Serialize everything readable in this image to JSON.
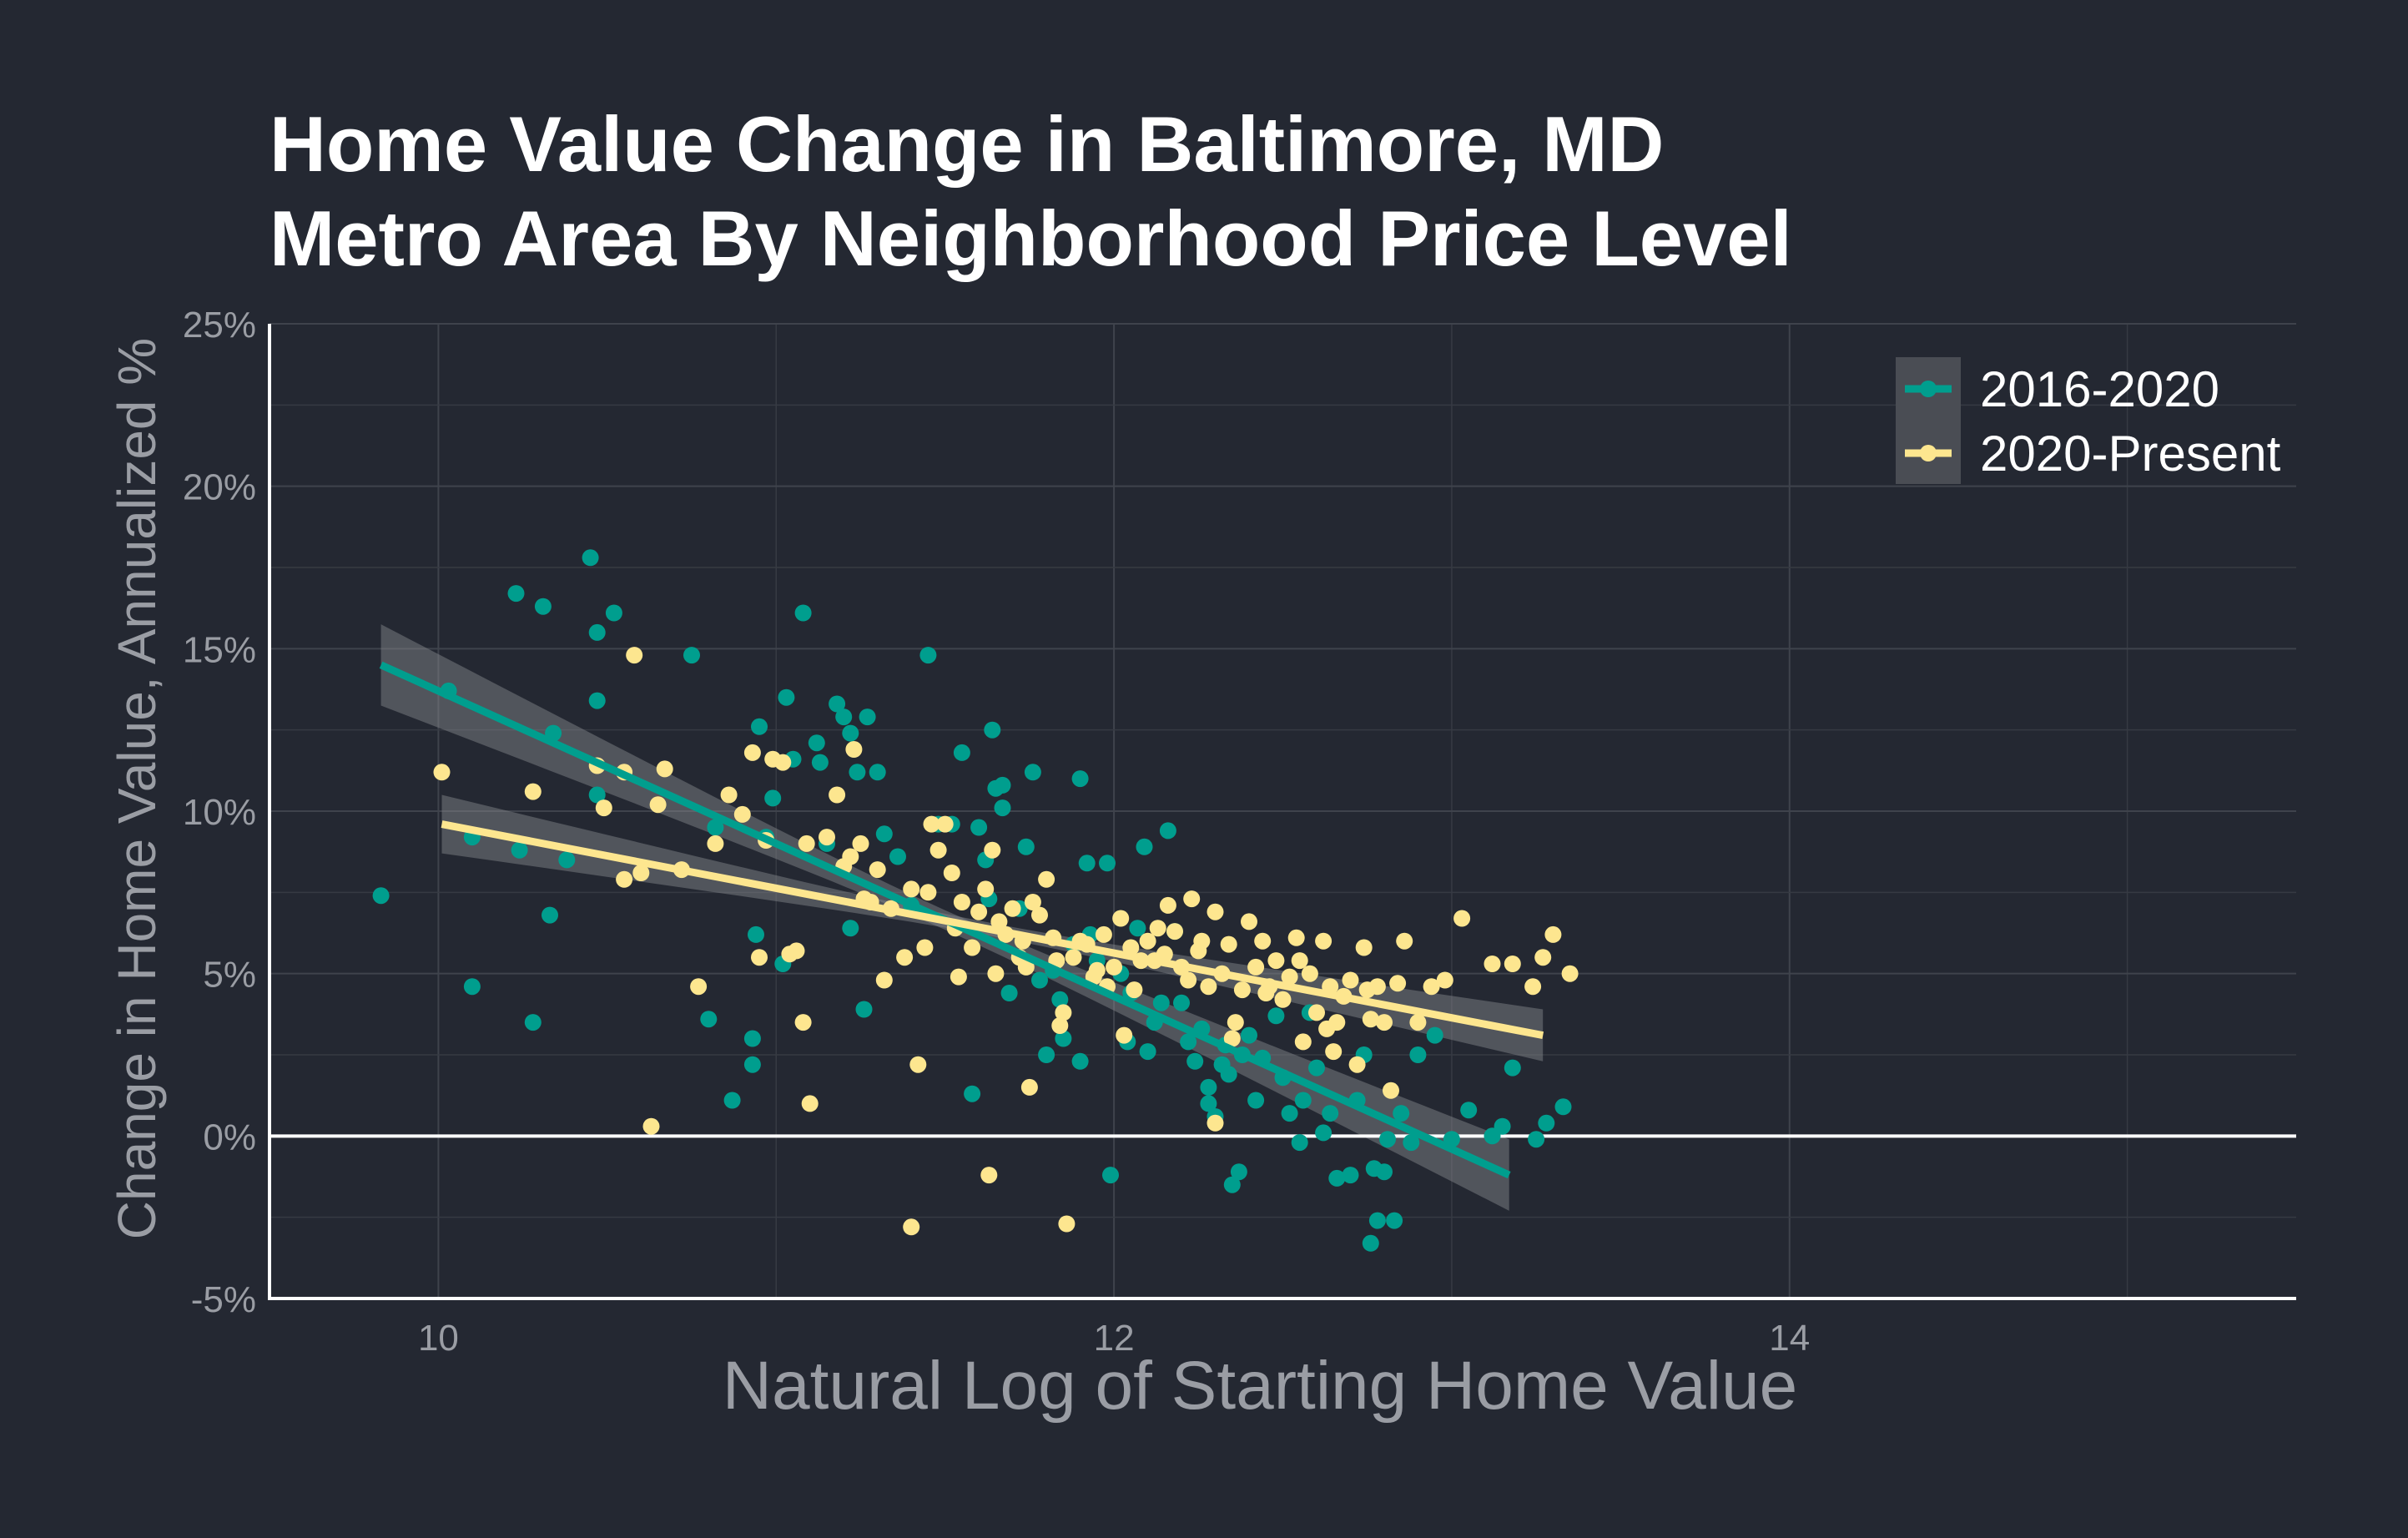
{
  "chart_data": {
    "type": "scatter",
    "title": [
      "Home Value Change in Baltimore, MD",
      "Metro Area By Neighborhood Price Level"
    ],
    "xlabel": "Natural Log of Starting Home Value",
    "ylabel": "Change in Home Value, Annualized %",
    "xlim": [
      9.5,
      15.5
    ],
    "ylim": [
      -5,
      25
    ],
    "x_ticks": [
      10,
      12,
      14
    ],
    "x_tick_labels": [
      "10",
      "12",
      "14"
    ],
    "y_ticks": [
      -5,
      0,
      5,
      10,
      15,
      20,
      25
    ],
    "y_tick_labels": [
      "-5%",
      "0%",
      "5%",
      "10%",
      "15%",
      "20%",
      "25%"
    ],
    "grid": true,
    "zero_line": true,
    "legend_position": "top-right",
    "series": [
      {
        "name": "2016-2020",
        "color": "#009e8e",
        "trend": {
          "x": [
            9.83,
            13.17
          ],
          "y": [
            14.5,
            -1.2
          ],
          "band_halfwidth_ends": [
            1.25,
            1.1
          ],
          "band_halfwidth_center": 0.3
        },
        "points": [
          [
            9.83,
            7.4
          ],
          [
            10.03,
            13.7
          ],
          [
            10.1,
            4.6
          ],
          [
            10.1,
            9.2
          ],
          [
            10.23,
            16.7
          ],
          [
            10.24,
            8.8
          ],
          [
            10.28,
            3.5
          ],
          [
            10.31,
            16.3
          ],
          [
            10.33,
            6.8
          ],
          [
            10.34,
            12.4
          ],
          [
            10.38,
            8.5
          ],
          [
            10.45,
            17.8
          ],
          [
            10.47,
            15.5
          ],
          [
            10.47,
            13.4
          ],
          [
            10.47,
            10.5
          ],
          [
            10.52,
            16.1
          ],
          [
            10.75,
            14.8
          ],
          [
            10.8,
            3.6
          ],
          [
            10.82,
            9.5
          ],
          [
            10.87,
            1.1
          ],
          [
            10.93,
            3.0
          ],
          [
            10.93,
            2.2
          ],
          [
            10.94,
            6.2
          ],
          [
            10.95,
            12.6
          ],
          [
            10.97,
            9.2
          ],
          [
            10.99,
            10.4
          ],
          [
            11.02,
            5.3
          ],
          [
            11.03,
            13.5
          ],
          [
            11.05,
            11.6
          ],
          [
            11.08,
            16.1
          ],
          [
            11.12,
            12.1
          ],
          [
            11.13,
            11.5
          ],
          [
            11.15,
            9.0
          ],
          [
            11.18,
            13.3
          ],
          [
            11.2,
            12.9
          ],
          [
            11.22,
            12.4
          ],
          [
            11.22,
            6.4
          ],
          [
            11.24,
            11.2
          ],
          [
            11.26,
            3.9
          ],
          [
            11.27,
            12.9
          ],
          [
            11.3,
            11.2
          ],
          [
            11.32,
            9.3
          ],
          [
            11.36,
            8.6
          ],
          [
            11.4,
            7.1
          ],
          [
            11.45,
            14.8
          ],
          [
            11.48,
            9.6
          ],
          [
            11.52,
            9.6
          ],
          [
            11.55,
            11.8
          ],
          [
            11.58,
            1.3
          ],
          [
            11.6,
            9.5
          ],
          [
            11.62,
            8.5
          ],
          [
            11.63,
            7.3
          ],
          [
            11.64,
            12.5
          ],
          [
            11.65,
            10.7
          ],
          [
            11.67,
            10.8
          ],
          [
            11.67,
            10.1
          ],
          [
            11.69,
            4.4
          ],
          [
            11.72,
            7.0
          ],
          [
            11.74,
            8.9
          ],
          [
            11.76,
            11.2
          ],
          [
            11.78,
            4.8
          ],
          [
            11.8,
            2.5
          ],
          [
            11.82,
            5.1
          ],
          [
            11.84,
            4.2
          ],
          [
            11.85,
            3.0
          ],
          [
            11.88,
            5.9
          ],
          [
            11.9,
            2.3
          ],
          [
            11.9,
            11.0
          ],
          [
            11.92,
            8.4
          ],
          [
            11.93,
            6.2
          ],
          [
            11.95,
            5.4
          ],
          [
            11.98,
            8.4
          ],
          [
            11.99,
            -1.2
          ],
          [
            12.02,
            5.0
          ],
          [
            12.04,
            2.9
          ],
          [
            12.05,
            4.4
          ],
          [
            12.07,
            6.4
          ],
          [
            12.09,
            8.9
          ],
          [
            12.1,
            2.6
          ],
          [
            12.12,
            3.5
          ],
          [
            12.14,
            4.1
          ],
          [
            12.16,
            9.4
          ],
          [
            12.18,
            6.3
          ],
          [
            12.2,
            4.1
          ],
          [
            12.22,
            2.9
          ],
          [
            12.24,
            2.3
          ],
          [
            12.26,
            3.3
          ],
          [
            12.28,
            1.5
          ],
          [
            12.28,
            1.0
          ],
          [
            12.3,
            0.6
          ],
          [
            12.32,
            2.2
          ],
          [
            12.33,
            2.8
          ],
          [
            12.34,
            1.9
          ],
          [
            12.35,
            -1.5
          ],
          [
            12.37,
            -1.1
          ],
          [
            12.38,
            2.5
          ],
          [
            12.4,
            3.1
          ],
          [
            12.42,
            1.1
          ],
          [
            12.44,
            2.4
          ],
          [
            12.48,
            3.7
          ],
          [
            12.5,
            1.8
          ],
          [
            12.52,
            0.7
          ],
          [
            12.55,
            -0.2
          ],
          [
            12.56,
            1.1
          ],
          [
            12.58,
            3.8
          ],
          [
            12.6,
            2.1
          ],
          [
            12.62,
            0.1
          ],
          [
            12.64,
            0.7
          ],
          [
            12.66,
            -1.3
          ],
          [
            12.7,
            -1.2
          ],
          [
            12.72,
            1.1
          ],
          [
            12.74,
            2.5
          ],
          [
            12.76,
            -3.3
          ],
          [
            12.77,
            -1.0
          ],
          [
            12.78,
            -2.6
          ],
          [
            12.8,
            -1.1
          ],
          [
            12.81,
            -0.1
          ],
          [
            12.83,
            -2.6
          ],
          [
            12.85,
            0.7
          ],
          [
            12.88,
            -0.2
          ],
          [
            12.9,
            2.5
          ],
          [
            12.95,
            3.1
          ],
          [
            13.0,
            -0.1
          ],
          [
            13.05,
            0.8
          ],
          [
            13.12,
            0.0
          ],
          [
            13.15,
            0.3
          ],
          [
            13.18,
            2.1
          ],
          [
            13.25,
            -0.1
          ],
          [
            13.28,
            0.4
          ],
          [
            13.33,
            0.9
          ]
        ]
      },
      {
        "name": "2020-Present",
        "color": "#fde68f",
        "trend": {
          "x": [
            10.01,
            13.27
          ],
          "y": [
            9.6,
            3.1
          ],
          "band_halfwidth_ends": [
            0.9,
            0.8
          ],
          "band_halfwidth_center": 0.2
        },
        "points": [
          [
            10.01,
            11.2
          ],
          [
            10.28,
            10.6
          ],
          [
            10.55,
            11.2
          ],
          [
            10.47,
            11.4
          ],
          [
            10.49,
            10.1
          ],
          [
            10.55,
            7.9
          ],
          [
            10.58,
            14.8
          ],
          [
            10.6,
            8.1
          ],
          [
            10.63,
            0.3
          ],
          [
            10.65,
            10.2
          ],
          [
            10.67,
            11.3
          ],
          [
            10.72,
            8.2
          ],
          [
            10.77,
            4.6
          ],
          [
            10.82,
            9.0
          ],
          [
            10.86,
            10.5
          ],
          [
            10.9,
            9.9
          ],
          [
            10.93,
            11.8
          ],
          [
            10.95,
            5.5
          ],
          [
            10.97,
            9.1
          ],
          [
            10.99,
            11.6
          ],
          [
            11.02,
            11.5
          ],
          [
            11.04,
            5.6
          ],
          [
            11.06,
            5.7
          ],
          [
            11.08,
            3.5
          ],
          [
            11.09,
            9.0
          ],
          [
            11.1,
            1.0
          ],
          [
            11.15,
            9.2
          ],
          [
            11.18,
            10.5
          ],
          [
            11.2,
            8.3
          ],
          [
            11.22,
            8.6
          ],
          [
            11.23,
            11.9
          ],
          [
            11.25,
            9.0
          ],
          [
            11.26,
            7.3
          ],
          [
            11.28,
            7.2
          ],
          [
            11.3,
            8.2
          ],
          [
            11.32,
            4.8
          ],
          [
            11.34,
            7.0
          ],
          [
            11.38,
            5.5
          ],
          [
            11.4,
            -2.8
          ],
          [
            11.4,
            7.6
          ],
          [
            11.42,
            2.2
          ],
          [
            11.44,
            5.8
          ],
          [
            11.45,
            7.5
          ],
          [
            11.46,
            9.6
          ],
          [
            11.48,
            8.8
          ],
          [
            11.5,
            9.6
          ],
          [
            11.52,
            8.1
          ],
          [
            11.53,
            6.4
          ],
          [
            11.54,
            4.9
          ],
          [
            11.55,
            7.2
          ],
          [
            11.58,
            5.8
          ],
          [
            11.6,
            6.9
          ],
          [
            11.62,
            7.6
          ],
          [
            11.63,
            -1.2
          ],
          [
            11.64,
            8.8
          ],
          [
            11.65,
            5.0
          ],
          [
            11.66,
            6.6
          ],
          [
            11.68,
            6.2
          ],
          [
            11.7,
            7.0
          ],
          [
            11.72,
            5.5
          ],
          [
            11.73,
            6.0
          ],
          [
            11.74,
            5.2
          ],
          [
            11.75,
            1.5
          ],
          [
            11.76,
            7.2
          ],
          [
            11.78,
            6.8
          ],
          [
            11.8,
            7.9
          ],
          [
            11.82,
            6.1
          ],
          [
            11.83,
            5.4
          ],
          [
            11.84,
            3.4
          ],
          [
            11.85,
            3.8
          ],
          [
            11.86,
            -2.7
          ],
          [
            11.88,
            5.5
          ],
          [
            11.9,
            6.0
          ],
          [
            11.92,
            5.9
          ],
          [
            11.94,
            4.9
          ],
          [
            11.95,
            5.1
          ],
          [
            11.97,
            6.2
          ],
          [
            11.98,
            4.6
          ],
          [
            12.0,
            5.2
          ],
          [
            12.02,
            6.7
          ],
          [
            12.03,
            3.1
          ],
          [
            12.05,
            5.8
          ],
          [
            12.06,
            4.5
          ],
          [
            12.08,
            5.4
          ],
          [
            12.1,
            6.0
          ],
          [
            12.12,
            5.4
          ],
          [
            12.13,
            6.4
          ],
          [
            12.15,
            5.6
          ],
          [
            12.16,
            7.1
          ],
          [
            12.18,
            6.3
          ],
          [
            12.2,
            5.2
          ],
          [
            12.22,
            4.8
          ],
          [
            12.23,
            7.3
          ],
          [
            12.25,
            5.7
          ],
          [
            12.26,
            6.0
          ],
          [
            12.28,
            4.6
          ],
          [
            12.3,
            0.4
          ],
          [
            12.3,
            6.9
          ],
          [
            12.32,
            5.0
          ],
          [
            12.34,
            5.9
          ],
          [
            12.35,
            3.0
          ],
          [
            12.36,
            3.5
          ],
          [
            12.38,
            4.5
          ],
          [
            12.4,
            6.6
          ],
          [
            12.42,
            5.2
          ],
          [
            12.44,
            6.0
          ],
          [
            12.45,
            4.4
          ],
          [
            12.46,
            4.6
          ],
          [
            12.48,
            5.4
          ],
          [
            12.5,
            4.2
          ],
          [
            12.52,
            4.9
          ],
          [
            12.54,
            6.1
          ],
          [
            12.55,
            5.4
          ],
          [
            12.56,
            2.9
          ],
          [
            12.58,
            5.0
          ],
          [
            12.6,
            3.8
          ],
          [
            12.62,
            6.0
          ],
          [
            12.63,
            3.3
          ],
          [
            12.64,
            4.6
          ],
          [
            12.65,
            2.6
          ],
          [
            12.66,
            3.5
          ],
          [
            12.68,
            4.3
          ],
          [
            12.7,
            4.8
          ],
          [
            12.72,
            2.2
          ],
          [
            12.74,
            5.8
          ],
          [
            12.75,
            4.5
          ],
          [
            12.76,
            3.6
          ],
          [
            12.78,
            4.6
          ],
          [
            12.8,
            3.5
          ],
          [
            12.82,
            1.4
          ],
          [
            12.84,
            4.7
          ],
          [
            12.86,
            6.0
          ],
          [
            12.9,
            3.5
          ],
          [
            12.94,
            4.6
          ],
          [
            12.98,
            4.8
          ],
          [
            13.03,
            6.7
          ],
          [
            13.12,
            5.3
          ],
          [
            13.18,
            5.3
          ],
          [
            13.24,
            4.6
          ],
          [
            13.3,
            6.2
          ],
          [
            13.35,
            5.0
          ],
          [
            13.27,
            5.5
          ]
        ]
      }
    ]
  }
}
